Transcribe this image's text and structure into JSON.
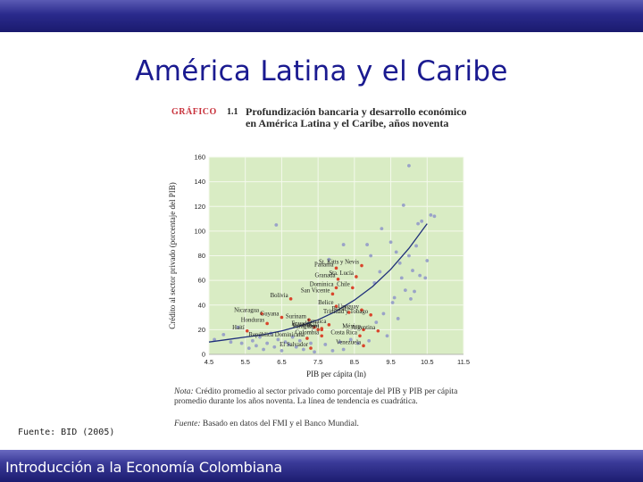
{
  "slide": {
    "title": "América Latina y el Caribe",
    "source": "Fuente: BID (2005)",
    "footer": "Introducción a la Economía Colombiana"
  },
  "figure": {
    "label": "GRÁFICO",
    "number": "1.1",
    "title": "Profundización bancaria y desarrollo económico en América Latina y el Caribe, años noventa",
    "note_label": "Nota:",
    "note_text": "Crédito promedio al sector privado como porcentaje del PIB y PIB per cápita promedio durante los años noventa. La línea de tendencia es cuadrática.",
    "source_label": "Fuente:",
    "source_text": "Basado en datos del FMI y el Banco Mundial."
  },
  "colors": {
    "plot_background": "#d9ecc4",
    "grid": "#f4f9ec",
    "trend": "#1f2f7a",
    "highlight_point": "#d9452c",
    "other_point": "#9aa3c8",
    "figure_label": "#c8323c",
    "title": "#1a1a90"
  },
  "chart_data": {
    "type": "scatter",
    "xlabel": "PIB per cápita (ln)",
    "ylabel": "Crédito al sector privado (porcentaje del PIB)",
    "xlim": [
      4.5,
      11.5
    ],
    "ylim": [
      0,
      160
    ],
    "xticks": [
      "4.5",
      "5.5",
      "6.5",
      "7.5",
      "8.5",
      "9.5",
      "10.5",
      "11.5"
    ],
    "yticks": [
      "0",
      "20",
      "40",
      "60",
      "80",
      "100",
      "120",
      "140",
      "160"
    ],
    "xtick_values": [
      4.5,
      5.5,
      6.5,
      7.5,
      8.5,
      9.5,
      10.5,
      11.5
    ],
    "ytick_values": [
      0,
      20,
      40,
      60,
      80,
      100,
      120,
      140,
      160
    ],
    "trend": {
      "type": "quadratic",
      "x": [
        4.5,
        5.0,
        5.5,
        6.0,
        6.5,
        7.0,
        7.5,
        8.0,
        8.5,
        9.0,
        9.5,
        10.0,
        10.5
      ],
      "y": [
        10,
        12,
        14,
        16,
        19,
        23,
        28,
        35,
        44,
        55,
        69,
        86,
        106
      ]
    },
    "countries": [
      {
        "name": "Panamá",
        "x": 8.0,
        "y": 70,
        "label": "Panamá"
      },
      {
        "name": "St. Kitts y Nevis",
        "x": 8.7,
        "y": 72,
        "label": "St. Kitts y Nevis"
      },
      {
        "name": "Granada",
        "x": 8.05,
        "y": 61,
        "label": "Granada"
      },
      {
        "name": "Santa Lucía",
        "x": 8.55,
        "y": 63,
        "label": "Sta. Lucía"
      },
      {
        "name": "Dominica",
        "x": 8.0,
        "y": 54,
        "label": "Dominica"
      },
      {
        "name": "San Vicente",
        "x": 7.9,
        "y": 49,
        "label": "San Vicente"
      },
      {
        "name": "Chile",
        "x": 8.45,
        "y": 54,
        "label": "Chile"
      },
      {
        "name": "Bolivia",
        "x": 6.75,
        "y": 45,
        "label": "Bolivia"
      },
      {
        "name": "Belice",
        "x": 8.0,
        "y": 39,
        "label": "Belice"
      },
      {
        "name": "Brasil",
        "x": 8.35,
        "y": 34,
        "label": "Brasil"
      },
      {
        "name": "Uruguay",
        "x": 8.7,
        "y": 36,
        "label": "Uruguay"
      },
      {
        "name": "Trinidad y Tobago",
        "x": 8.95,
        "y": 32,
        "label": "Trinidad y Tobago"
      },
      {
        "name": "Nicaragua",
        "x": 5.95,
        "y": 33,
        "label": "Nicaragua"
      },
      {
        "name": "Guyana",
        "x": 6.5,
        "y": 30,
        "label": "Guyana"
      },
      {
        "name": "Surinam",
        "x": 7.25,
        "y": 28,
        "label": "Surinam"
      },
      {
        "name": "Honduras",
        "x": 6.1,
        "y": 25,
        "label": "Honduras"
      },
      {
        "name": "Jamaica",
        "x": 7.8,
        "y": 24,
        "label": "Jamaica"
      },
      {
        "name": "Haití",
        "x": 5.55,
        "y": 19,
        "label": "Haití"
      },
      {
        "name": "Ecuador",
        "x": 7.4,
        "y": 22,
        "label": "Ecuador"
      },
      {
        "name": "Paraguay",
        "x": 7.5,
        "y": 20,
        "label": "Paraguay"
      },
      {
        "name": "Perú",
        "x": 7.6,
        "y": 20,
        "label": "Perú"
      },
      {
        "name": "Guatemala",
        "x": 7.6,
        "y": 21,
        "label": "Guatemala"
      },
      {
        "name": "República Dominicana",
        "x": 7.2,
        "y": 13,
        "label": "República Dominicana"
      },
      {
        "name": "Colombia",
        "x": 7.6,
        "y": 15,
        "label": "Colombia"
      },
      {
        "name": "México",
        "x": 8.75,
        "y": 20,
        "label": "México"
      },
      {
        "name": "Argentina",
        "x": 9.15,
        "y": 19,
        "label": "Argentina"
      },
      {
        "name": "Costa Rica",
        "x": 8.65,
        "y": 15,
        "label": "Costa Rica"
      },
      {
        "name": "El Salvador",
        "x": 7.3,
        "y": 5,
        "label": "El Salvador"
      },
      {
        "name": "Venezuela",
        "x": 8.75,
        "y": 7,
        "label": "Venezuela"
      }
    ],
    "other_points": [
      {
        "x": 4.65,
        "y": 12
      },
      {
        "x": 4.9,
        "y": 16
      },
      {
        "x": 5.1,
        "y": 10
      },
      {
        "x": 5.3,
        "y": 22
      },
      {
        "x": 5.4,
        "y": 9
      },
      {
        "x": 5.6,
        "y": 5
      },
      {
        "x": 5.7,
        "y": 11
      },
      {
        "x": 5.8,
        "y": 7
      },
      {
        "x": 5.9,
        "y": 14
      },
      {
        "x": 6.0,
        "y": 4
      },
      {
        "x": 6.1,
        "y": 9
      },
      {
        "x": 6.2,
        "y": 17
      },
      {
        "x": 6.3,
        "y": 6
      },
      {
        "x": 6.4,
        "y": 12
      },
      {
        "x": 6.5,
        "y": 3
      },
      {
        "x": 6.6,
        "y": 10
      },
      {
        "x": 6.7,
        "y": 8
      },
      {
        "x": 6.8,
        "y": 14
      },
      {
        "x": 6.9,
        "y": 6
      },
      {
        "x": 7.0,
        "y": 11
      },
      {
        "x": 7.1,
        "y": 4
      },
      {
        "x": 7.3,
        "y": 9
      },
      {
        "x": 7.4,
        "y": 2
      },
      {
        "x": 7.7,
        "y": 8
      },
      {
        "x": 7.9,
        "y": 3
      },
      {
        "x": 8.1,
        "y": 10
      },
      {
        "x": 8.2,
        "y": 4
      },
      {
        "x": 8.4,
        "y": 12
      },
      {
        "x": 8.6,
        "y": 9
      },
      {
        "x": 8.9,
        "y": 11
      },
      {
        "x": 9.1,
        "y": 26
      },
      {
        "x": 9.3,
        "y": 33
      },
      {
        "x": 9.4,
        "y": 15
      },
      {
        "x": 9.6,
        "y": 46
      },
      {
        "x": 9.7,
        "y": 29
      },
      {
        "x": 9.8,
        "y": 62
      },
      {
        "x": 9.9,
        "y": 52
      },
      {
        "x": 10.0,
        "y": 80
      },
      {
        "x": 10.05,
        "y": 45
      },
      {
        "x": 10.1,
        "y": 68
      },
      {
        "x": 10.2,
        "y": 88
      },
      {
        "x": 10.25,
        "y": 106
      },
      {
        "x": 10.3,
        "y": 64
      },
      {
        "x": 10.35,
        "y": 108
      },
      {
        "x": 10.45,
        "y": 62
      },
      {
        "x": 10.5,
        "y": 76
      },
      {
        "x": 10.6,
        "y": 113
      },
      {
        "x": 10.7,
        "y": 112
      },
      {
        "x": 10.0,
        "y": 153
      },
      {
        "x": 9.85,
        "y": 121
      },
      {
        "x": 9.65,
        "y": 83
      },
      {
        "x": 9.5,
        "y": 91
      },
      {
        "x": 9.25,
        "y": 102
      },
      {
        "x": 8.85,
        "y": 89
      },
      {
        "x": 8.2,
        "y": 89
      },
      {
        "x": 7.8,
        "y": 77
      },
      {
        "x": 6.35,
        "y": 105
      },
      {
        "x": 8.95,
        "y": 80
      },
      {
        "x": 9.05,
        "y": 58
      },
      {
        "x": 9.2,
        "y": 67
      },
      {
        "x": 9.75,
        "y": 74
      },
      {
        "x": 10.15,
        "y": 51
      },
      {
        "x": 9.55,
        "y": 42
      }
    ]
  }
}
